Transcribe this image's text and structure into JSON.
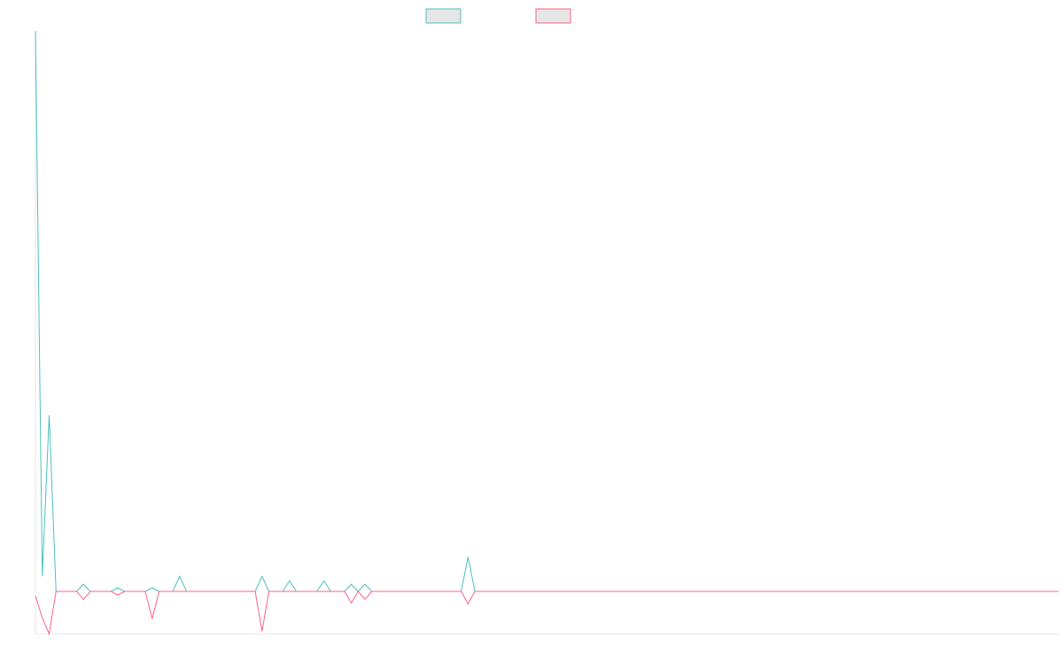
{
  "chart_data": {
    "type": "line",
    "ylim": [
      -48,
      633
    ],
    "series": [
      {
        "color": "#4bc0c0",
        "values": [
          633,
          17,
          199,
          0,
          0,
          0,
          0,
          8,
          0,
          0,
          0,
          0,
          4,
          0,
          0,
          0,
          0,
          4,
          0,
          0,
          0,
          17,
          0,
          0,
          0,
          0,
          0,
          0,
          0,
          0,
          0,
          0,
          0,
          17,
          0,
          0,
          0,
          12,
          0,
          0,
          0,
          0,
          12,
          0,
          0,
          0,
          8,
          0,
          8,
          0,
          0,
          0,
          0,
          0,
          0,
          0,
          0,
          0,
          0,
          0,
          0,
          0,
          0,
          39,
          0,
          0,
          0,
          0,
          0,
          0,
          0,
          0,
          0,
          0,
          0,
          0,
          0,
          0,
          0,
          0,
          0,
          0,
          0,
          0,
          0,
          0,
          0,
          0,
          0,
          0,
          0,
          0,
          0,
          0,
          0,
          0,
          0,
          0,
          0,
          0,
          0,
          0,
          0,
          0,
          0,
          0,
          0,
          0,
          0,
          0,
          0,
          0,
          0,
          0,
          0,
          0,
          0,
          0,
          0,
          0,
          0,
          0,
          0,
          0,
          0,
          0,
          0,
          0,
          0,
          0,
          0,
          0,
          0,
          0,
          0,
          0,
          0,
          0,
          0,
          0,
          0,
          0,
          0,
          0,
          0,
          0,
          0,
          0,
          0,
          0
        ]
      },
      {
        "color": "#ff6384",
        "values": [
          -5,
          -30,
          -48,
          0,
          0,
          0,
          0,
          -9,
          0,
          0,
          0,
          0,
          -4,
          0,
          0,
          0,
          0,
          -31,
          0,
          0,
          0,
          0,
          0,
          0,
          0,
          0,
          0,
          0,
          0,
          0,
          0,
          0,
          0,
          -45,
          0,
          0,
          0,
          0,
          0,
          0,
          0,
          0,
          0,
          0,
          0,
          0,
          -13,
          0,
          -9,
          0,
          0,
          0,
          0,
          0,
          0,
          0,
          0,
          0,
          0,
          0,
          0,
          0,
          0,
          -14,
          0,
          0,
          0,
          0,
          0,
          0,
          0,
          0,
          0,
          0,
          0,
          0,
          0,
          0,
          0,
          0,
          0,
          0,
          0,
          0,
          0,
          0,
          0,
          0,
          0,
          0,
          0,
          0,
          0,
          0,
          0,
          0,
          0,
          0,
          0,
          0,
          0,
          0,
          0,
          0,
          0,
          0,
          0,
          0,
          0,
          0,
          0,
          0,
          0,
          0,
          0,
          0,
          0,
          0,
          0,
          0,
          0,
          0,
          0,
          0,
          0,
          0,
          0,
          0,
          0,
          0,
          0,
          0,
          0,
          0,
          0,
          0,
          0,
          0,
          0,
          0,
          0,
          0,
          0,
          0,
          0,
          0,
          0,
          0,
          0,
          0
        ]
      }
    ]
  }
}
